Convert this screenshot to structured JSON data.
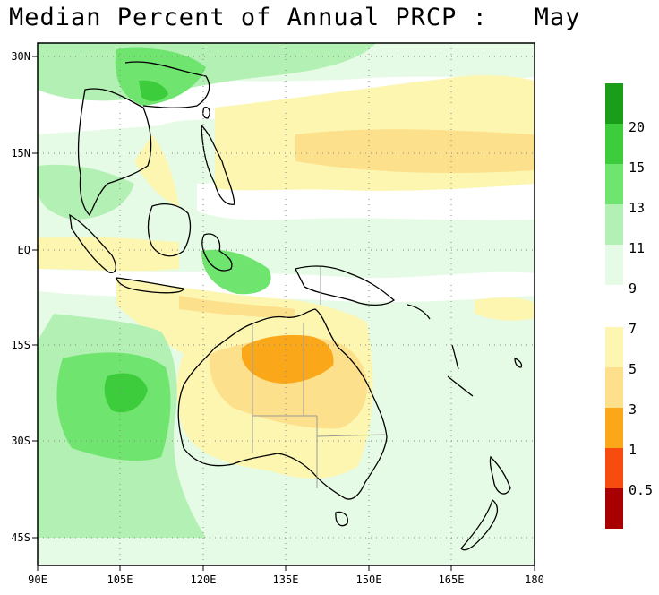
{
  "title": "Median Percent of Annual PRCP :   May",
  "lat_ticks": [
    {
      "label": "30N",
      "lat": 30
    },
    {
      "label": "15N",
      "lat": 15
    },
    {
      "label": "EQ",
      "lat": 0
    },
    {
      "label": "15S",
      "lat": -15
    },
    {
      "label": "30S",
      "lat": -30
    },
    {
      "label": "45S",
      "lat": -45
    }
  ],
  "lon_ticks": [
    {
      "label": "90E",
      "lon": 90
    },
    {
      "label": "105E",
      "lon": 105
    },
    {
      "label": "120E",
      "lon": 120
    },
    {
      "label": "135E",
      "lon": 135
    },
    {
      "label": "150E",
      "lon": 150
    },
    {
      "label": "165E",
      "lon": 165
    },
    {
      "label": "180",
      "lon": 180
    }
  ],
  "map_extent": {
    "lon": [
      90,
      180
    ],
    "lat": [
      -50,
      32
    ]
  },
  "colorbar": {
    "upper": {
      "bins": [
        "#1a9e1a",
        "#3ccc3c",
        "#6fe46f",
        "#b3f0b3",
        "#e6fbe6"
      ],
      "labels": [
        "20",
        "15",
        "13",
        "11",
        "9"
      ]
    },
    "lower": {
      "bins": [
        "#fdf6b0",
        "#fde08c",
        "#fba71a",
        "#f84b0f",
        "#a80000"
      ],
      "labels": [
        "7",
        "5",
        "3",
        "1",
        "0.5"
      ]
    }
  },
  "colors": {
    "background": "#e6fbe6",
    "land_line": "#000000",
    "border_line": "#999999"
  }
}
